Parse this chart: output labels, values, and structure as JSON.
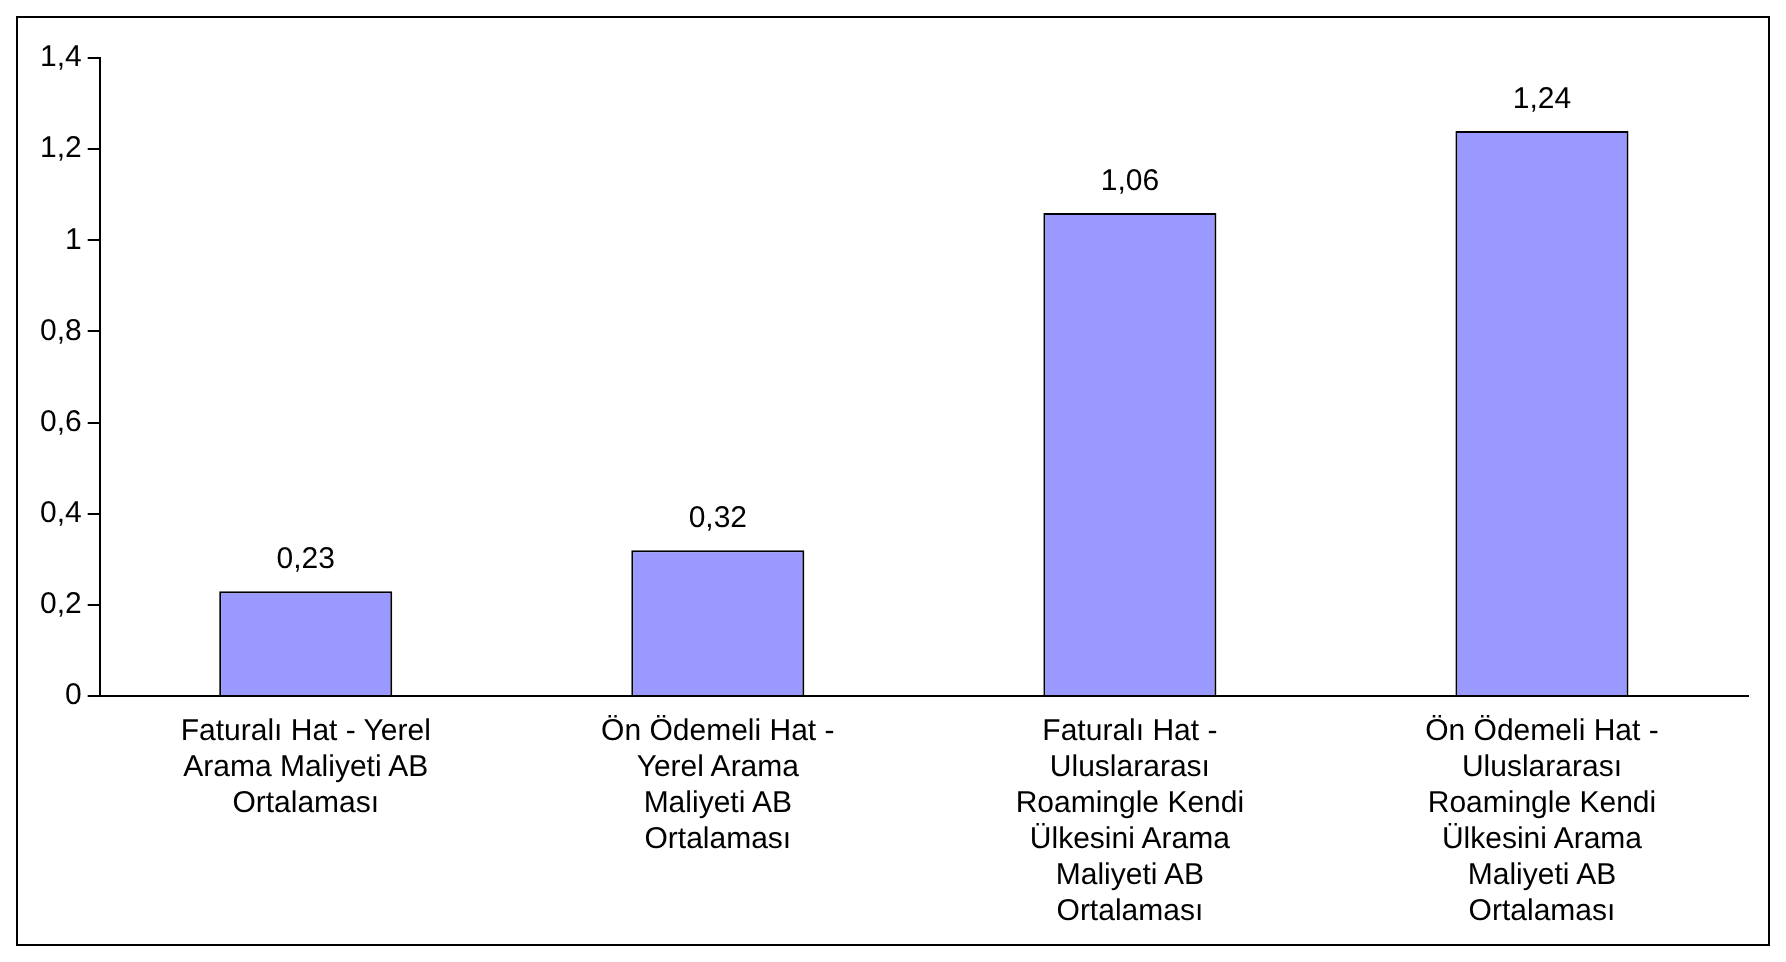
{
  "chart_data": {
    "type": "bar",
    "categories": [
      "Faturalı Hat - Yerel Arama Maliyeti AB Ortalaması",
      "Ön Ödemeli Hat - Yerel Arama Maliyeti AB Ortalaması",
      "Faturalı Hat - Uluslararası Roamingle Kendi Ülkesini Arama Maliyeti AB Ortalaması",
      "Ön Ödemeli Hat - Uluslararası Roamingle Kendi Ülkesini Arama Maliyeti AB Ortalaması"
    ],
    "values": [
      0.23,
      0.32,
      1.06,
      1.24
    ],
    "value_labels": [
      "0,23",
      "0,32",
      "1,06",
      "1,24"
    ],
    "color": "#9999ff",
    "ylim": [
      0,
      1.4
    ],
    "yticks": [
      {
        "value": 0,
        "label": "0"
      },
      {
        "value": 0.2,
        "label": "0,2"
      },
      {
        "value": 0.4,
        "label": "0,4"
      },
      {
        "value": 0.6,
        "label": "0,6"
      },
      {
        "value": 0.8,
        "label": "0,8"
      },
      {
        "value": 1,
        "label": "1"
      },
      {
        "value": 1.2,
        "label": "1,2"
      },
      {
        "value": 1.4,
        "label": "1,4"
      }
    ],
    "grid": false,
    "legend": false
  }
}
